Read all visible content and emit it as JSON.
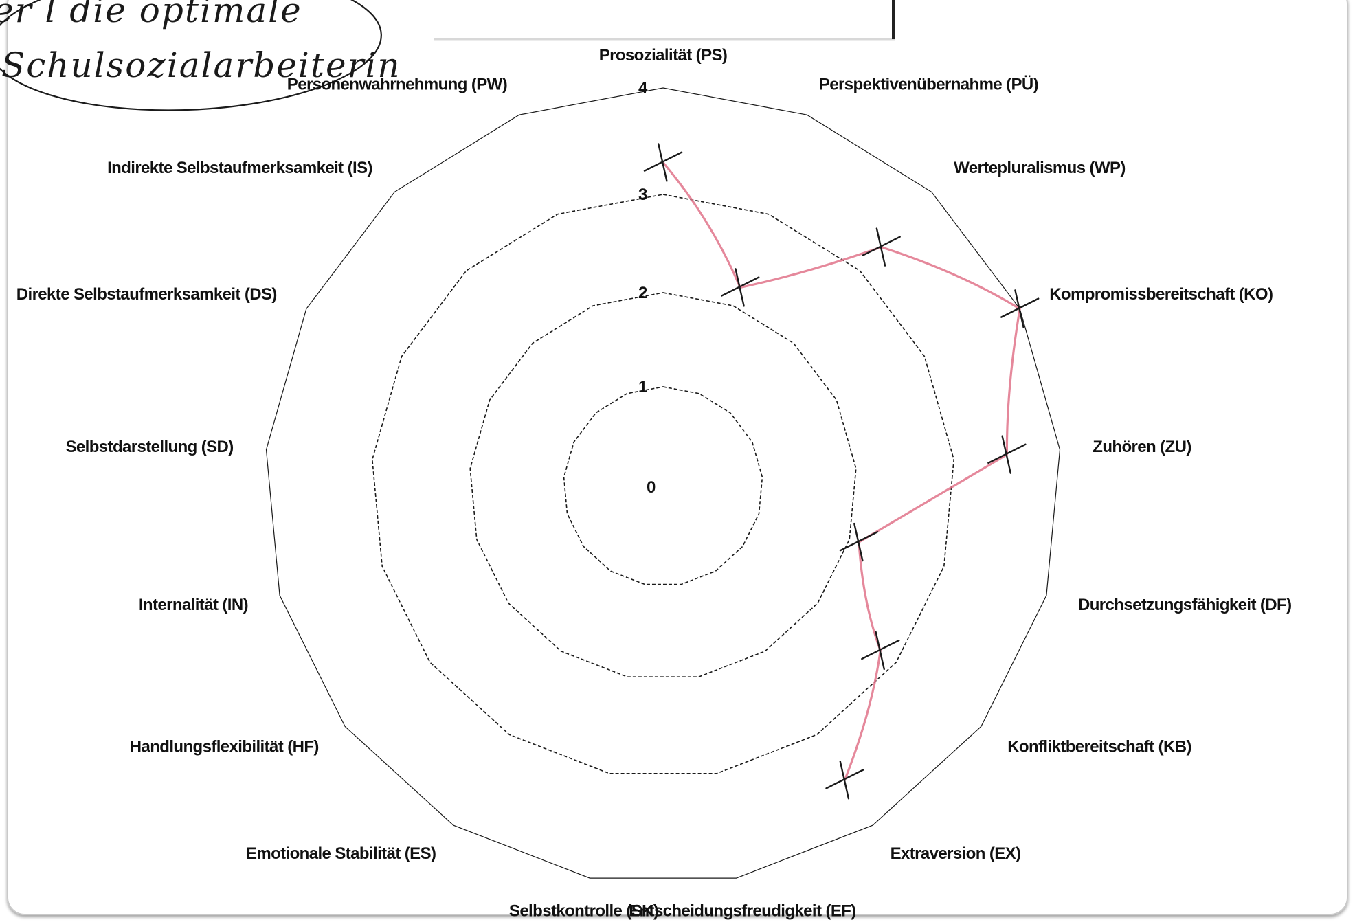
{
  "note": {
    "line1": "er l die optimale",
    "line2": "Schulsozialarbeiterin"
  },
  "chart_data": {
    "type": "radar",
    "rmax": 4,
    "ticks": [
      {
        "value": 0,
        "label": "0"
      },
      {
        "value": 1,
        "label": "1"
      },
      {
        "value": 2,
        "label": "2"
      },
      {
        "value": 3,
        "label": "3"
      },
      {
        "value": 4,
        "label": "4"
      }
    ],
    "axes": [
      "Prosozialität (PS)",
      "Perspektivenübernahme (PÜ)",
      "Wertepluralismus (WP)",
      "Kompromissbereitschaft (KO)",
      "Zuhören (ZU)",
      "Durchsetzungsfähigkeit (DF)",
      "Konfliktbereitschaft (KB)",
      "Extraversion (EX)",
      "Entscheidungsfreudigkeit (EF)",
      "Selbstkontrolle (SK)",
      "Emotionale Stabilität (ES)",
      "Handlungsflexibilität (HF)",
      "Internalität (IN)",
      "Selbstdarstellung (SD)",
      "Direkte Selbstaufmerksamkeit (DS)",
      "Indirekte Selbstaufmerksamkeit (IS)",
      "Personenwahrnehmung (PW)"
    ],
    "marks": [
      {
        "axis": "Prosozialität (PS)",
        "value": 3.3
      },
      {
        "axis": "Perspektivenübernahme (PÜ)",
        "value": 2.2
      },
      {
        "axis": "Wertepluralismus (WP)",
        "value": 3.3
      },
      {
        "axis": "Kompromissbereitschaft (KO)",
        "value": 4.0
      },
      {
        "axis": "Zuhören (ZU)",
        "value": 3.5
      },
      {
        "axis": "Durchsetzungsfähigkeit (DF)",
        "value": 2.1
      },
      {
        "axis": "Konfliktbereitschaft (KB)",
        "value": 2.8
      },
      {
        "axis": "Extraversion (EX)",
        "value": 3.5
      }
    ],
    "line_color": "#e0738a",
    "mark_color": "#1a1a1a"
  }
}
